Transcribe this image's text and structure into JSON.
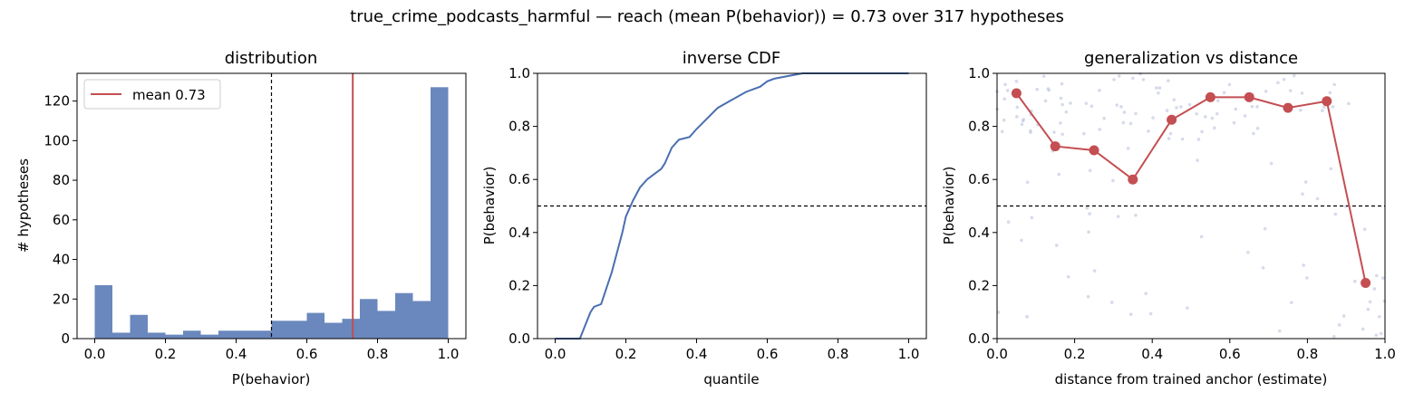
{
  "suptitle": "true_crime_podcasts_harmful  —  reach (mean P(behavior)) = 0.73  over 317 hypotheses",
  "colors": {
    "blue": "#6a88bd",
    "line_blue": "#4a6fb0",
    "red": "#c44e52",
    "scatter": "#b9c3dc"
  },
  "chart_data": [
    {
      "type": "bar",
      "title": "distribution",
      "xlabel": "P(behavior)",
      "ylabel": "# hypotheses",
      "xlim": [
        -0.05,
        1.05
      ],
      "ylim": [
        0,
        134
      ],
      "xticks": [
        "0.0",
        "0.2",
        "0.4",
        "0.6",
        "0.8",
        "1.0"
      ],
      "yticks": [
        "0",
        "20",
        "40",
        "60",
        "80",
        "100",
        "120"
      ],
      "bin_width": 0.05,
      "bin_starts": [
        0.0,
        0.05,
        0.1,
        0.15,
        0.2,
        0.25,
        0.3,
        0.35,
        0.4,
        0.45,
        0.5,
        0.55,
        0.6,
        0.65,
        0.7,
        0.75,
        0.8,
        0.85,
        0.9,
        0.95
      ],
      "values": [
        27,
        3,
        12,
        3,
        2,
        4,
        2,
        4,
        4,
        4,
        9,
        9,
        13,
        8,
        10,
        20,
        14,
        23,
        19,
        127
      ],
      "mean": 0.73,
      "legend": "mean 0.73",
      "legend_position": "upper-left",
      "threshold": 0.5
    },
    {
      "type": "line",
      "title": "inverse CDF",
      "xlabel": "quantile",
      "ylabel": "P(behavior)",
      "xlim": [
        -0.05,
        1.05
      ],
      "ylim": [
        0,
        1
      ],
      "xticks": [
        "0.0",
        "0.2",
        "0.4",
        "0.6",
        "0.8",
        "1.0"
      ],
      "yticks": [
        "0.0",
        "0.2",
        "0.4",
        "0.6",
        "0.8",
        "1.0"
      ],
      "x": [
        0,
        0.07,
        0.085,
        0.1,
        0.11,
        0.13,
        0.14,
        0.16,
        0.17,
        0.19,
        0.2,
        0.22,
        0.24,
        0.26,
        0.28,
        0.3,
        0.31,
        0.33,
        0.35,
        0.38,
        0.4,
        0.43,
        0.46,
        0.5,
        0.54,
        0.58,
        0.6,
        0.62,
        0.66,
        0.7,
        0.8,
        1.0
      ],
      "y": [
        0,
        0,
        0.05,
        0.1,
        0.12,
        0.13,
        0.17,
        0.25,
        0.3,
        0.4,
        0.46,
        0.52,
        0.57,
        0.6,
        0.62,
        0.64,
        0.66,
        0.72,
        0.75,
        0.76,
        0.79,
        0.83,
        0.87,
        0.9,
        0.93,
        0.95,
        0.97,
        0.98,
        0.99,
        1.0,
        1.0,
        1.0
      ],
      "threshold": 0.5
    },
    {
      "type": "scatter",
      "title": "generalization vs distance",
      "xlabel": "distance from trained anchor (estimate)",
      "ylabel": "P(behavior)",
      "xlim": [
        0,
        1
      ],
      "ylim": [
        0,
        1
      ],
      "xticks": [
        "0.0",
        "0.2",
        "0.4",
        "0.6",
        "0.8",
        "1.0"
      ],
      "yticks": [
        "0.0",
        "0.2",
        "0.4",
        "0.6",
        "0.8",
        "1.0"
      ],
      "series": [
        {
          "x": [
            0.05,
            0.15,
            0.25,
            0.35,
            0.45,
            0.55,
            0.65,
            0.75,
            0.85,
            0.95
          ],
          "y": [
            0.925,
            0.725,
            0.71,
            0.6,
            0.825,
            0.91,
            0.91,
            0.87,
            0.895,
            0.21
          ]
        }
      ],
      "threshold": 0.5
    }
  ]
}
